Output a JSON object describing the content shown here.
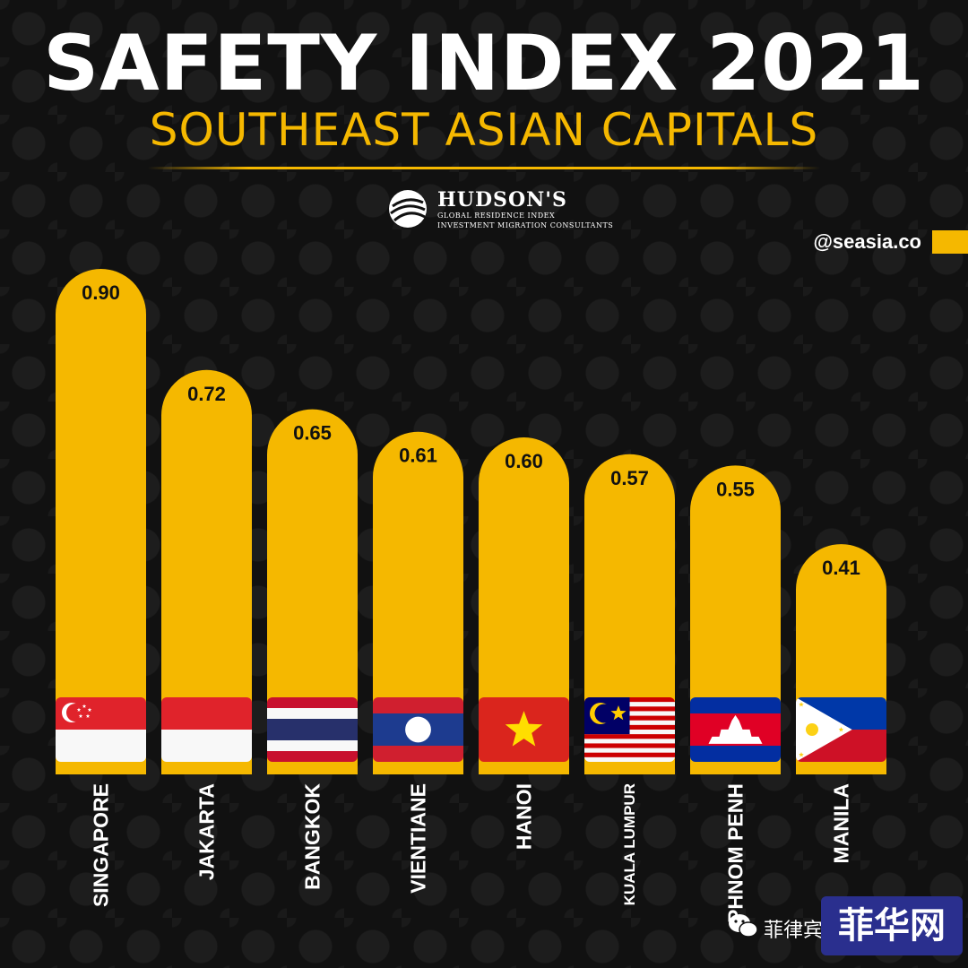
{
  "header": {
    "title": "SAFETY INDEX 2021",
    "subtitle": "SOUTHEAST ASIAN CAPITALS"
  },
  "brand": {
    "logo_icon": "globe-icon",
    "name": "HUDSON'S",
    "line1": "GLOBAL RESIDENCE INDEX",
    "line2": "INVESTMENT MIGRATION CONSULTANTS",
    "handle": "@seasia.co"
  },
  "watermark": {
    "icon": "wechat-icon",
    "text": "菲律宾",
    "logo_text": "菲华网"
  },
  "colors": {
    "accent": "#f5b800",
    "background": "#111111",
    "text": "#ffffff"
  },
  "chart_data": {
    "type": "bar",
    "title": "SAFETY INDEX 2021",
    "subtitle": "SOUTHEAST ASIAN CAPITALS",
    "categories": [
      "SINGAPORE",
      "JAKARTA",
      "BANGKOK",
      "VIENTIANE",
      "HANOI",
      "KUALA LUMPUR",
      "PHNOM PENH",
      "MANILA"
    ],
    "values": [
      0.9,
      0.72,
      0.65,
      0.61,
      0.6,
      0.57,
      0.55,
      0.41
    ],
    "value_labels": [
      "0.90",
      "0.72",
      "0.65",
      "0.61",
      "0.60",
      "0.57",
      "0.55",
      "0.41"
    ],
    "flags": [
      "singapore-flag-icon",
      "indonesia-flag-icon",
      "thailand-flag-icon",
      "laos-flag-icon",
      "vietnam-flag-icon",
      "malaysia-flag-icon",
      "cambodia-flag-icon",
      "philippines-flag-icon"
    ],
    "ylim": [
      0,
      1
    ],
    "grid": false,
    "legend": "none",
    "bar_color": "#f5b800"
  }
}
